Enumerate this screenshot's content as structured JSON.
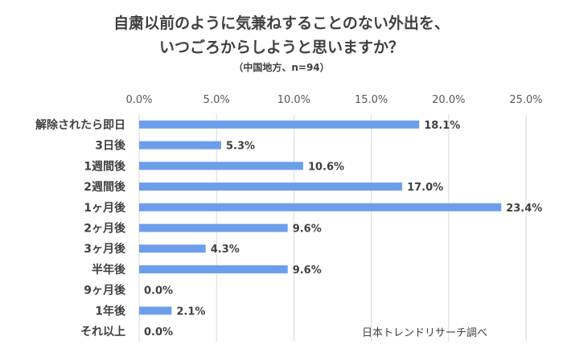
{
  "chart_data": {
    "type": "bar",
    "orientation": "horizontal",
    "title_lines": [
      "自粛以前のように気兼ねすることのない外出を、",
      "いつごろからしようと思いますか？"
    ],
    "subtitle": "（中国地方、n=94）",
    "categories": [
      "解除されたら即日",
      "3日後",
      "1週間後",
      "2週間後",
      "1ヶ月後",
      "2ヶ月後",
      "3ヶ月後",
      "半年後",
      "9ヶ月後",
      "1年後",
      "それ以上"
    ],
    "values": [
      18.1,
      5.3,
      10.6,
      17.0,
      23.4,
      9.6,
      4.3,
      9.6,
      0.0,
      2.1,
      0.0
    ],
    "value_labels": [
      "18.1%",
      "5.3%",
      "10.6%",
      "17.0%",
      "23.4%",
      "9.6%",
      "4.3%",
      "9.6%",
      "0.0%",
      "2.1%",
      "0.0%"
    ],
    "xlim": [
      0,
      25
    ],
    "xticks": [
      0,
      5,
      10,
      15,
      20,
      25
    ],
    "xtick_labels": [
      "0.0%",
      "5.0%",
      "10.0%",
      "15.0%",
      "20.0%",
      "25.0%"
    ],
    "axis_position": "top",
    "grid": "vertical",
    "bar_color": "#6D9EEB",
    "grid_color": "#D9D9D9",
    "source_note": "日本トレンドリサーチ調べ"
  }
}
